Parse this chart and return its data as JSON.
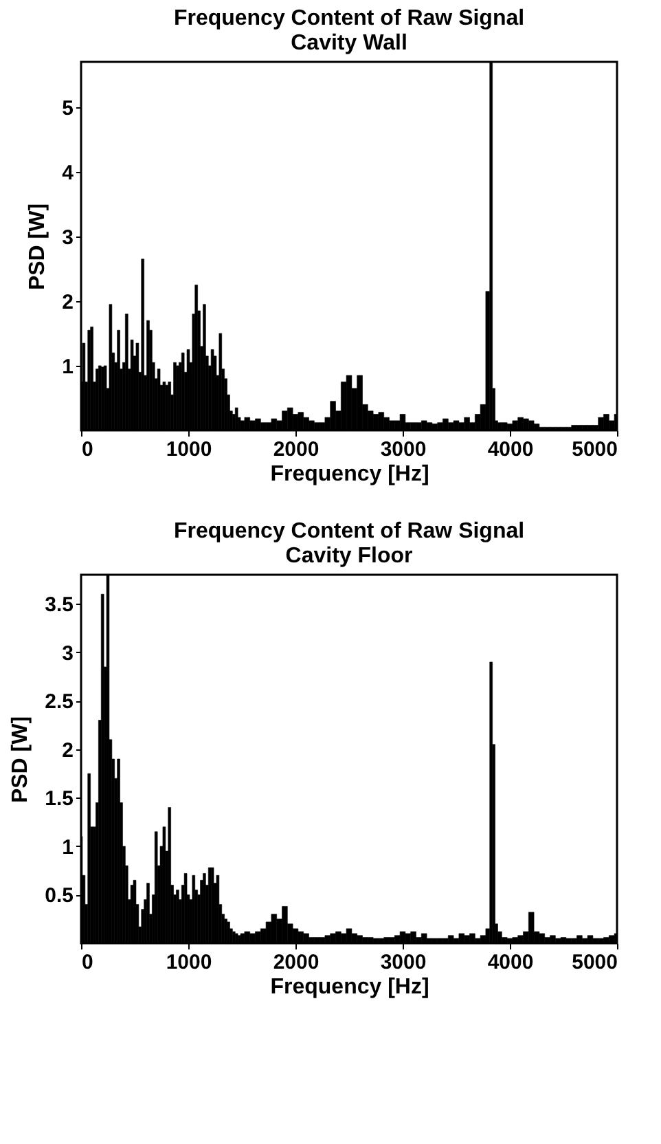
{
  "chart_data": [
    {
      "type": "bar",
      "title": "Frequency Content of Raw Signal",
      "subtitle": "Cavity Wall",
      "xlabel": "Frequency [Hz]",
      "ylabel": "PSD [W]",
      "xlim": [
        0,
        5000
      ],
      "xticks": [
        0,
        1000,
        2000,
        3000,
        4000,
        5000
      ],
      "ylim": [
        0,
        5.7
      ],
      "yticks": [
        1,
        2,
        3,
        4,
        5
      ],
      "grid": false,
      "series": [
        {
          "color": "#000000",
          "x": [
            0,
            25,
            50,
            75,
            100,
            125,
            150,
            175,
            200,
            225,
            250,
            275,
            300,
            325,
            350,
            375,
            400,
            425,
            450,
            475,
            500,
            525,
            550,
            575,
            600,
            625,
            650,
            675,
            700,
            725,
            750,
            775,
            800,
            825,
            850,
            875,
            900,
            925,
            950,
            975,
            1000,
            1025,
            1050,
            1075,
            1100,
            1125,
            1150,
            1175,
            1200,
            1225,
            1250,
            1275,
            1300,
            1325,
            1350,
            1375,
            1400,
            1425,
            1450,
            1475,
            1500,
            1550,
            1600,
            1650,
            1700,
            1750,
            1800,
            1850,
            1900,
            1950,
            2000,
            2050,
            2100,
            2150,
            2200,
            2250,
            2300,
            2350,
            2400,
            2450,
            2500,
            2550,
            2600,
            2650,
            2700,
            2750,
            2800,
            2850,
            2900,
            2950,
            3000,
            3050,
            3100,
            3150,
            3200,
            3250,
            3300,
            3350,
            3400,
            3450,
            3500,
            3550,
            3600,
            3650,
            3700,
            3750,
            3800,
            3825,
            3850,
            3875,
            3900,
            3950,
            4000,
            4050,
            4100,
            4150,
            4200,
            4250,
            4300,
            4350,
            4400,
            4450,
            4500,
            4550,
            4600,
            4650,
            4700,
            4750,
            4800,
            4850,
            4900,
            4950,
            5000
          ],
          "values": [
            0.75,
            1.35,
            0.75,
            1.55,
            1.6,
            0.75,
            0.95,
            1.0,
            0.98,
            1.0,
            0.65,
            1.95,
            1.2,
            1.05,
            1.55,
            0.95,
            1.05,
            1.8,
            0.95,
            1.4,
            1.15,
            1.35,
            0.9,
            2.65,
            0.85,
            1.7,
            1.55,
            1.05,
            0.8,
            0.95,
            0.7,
            0.75,
            0.7,
            0.75,
            0.55,
            1.05,
            1.0,
            1.05,
            1.2,
            0.9,
            1.25,
            1.05,
            1.8,
            2.25,
            1.85,
            1.3,
            1.95,
            1.15,
            1.0,
            1.25,
            1.15,
            0.85,
            1.5,
            0.95,
            0.8,
            0.55,
            0.3,
            0.25,
            0.35,
            0.2,
            0.15,
            0.2,
            0.15,
            0.18,
            0.12,
            0.12,
            0.18,
            0.15,
            0.3,
            0.35,
            0.25,
            0.28,
            0.2,
            0.15,
            0.12,
            0.12,
            0.2,
            0.45,
            0.3,
            0.75,
            0.85,
            0.65,
            0.85,
            0.4,
            0.3,
            0.25,
            0.28,
            0.2,
            0.15,
            0.15,
            0.25,
            0.12,
            0.12,
            0.12,
            0.15,
            0.12,
            0.1,
            0.12,
            0.18,
            0.12,
            0.15,
            0.12,
            0.2,
            0.12,
            0.25,
            0.4,
            2.15,
            5.7,
            0.65,
            0.15,
            0.12,
            0.12,
            0.1,
            0.15,
            0.2,
            0.18,
            0.15,
            0.1,
            0.05,
            0.05,
            0.05,
            0.05,
            0.05,
            0.05,
            0.08,
            0.08,
            0.08,
            0.08,
            0.08,
            0.2,
            0.25,
            0.15,
            0.25
          ]
        }
      ]
    },
    {
      "type": "bar",
      "title": "Frequency Content of Raw Signal",
      "subtitle": "Cavity Floor",
      "xlabel": "Frequency [Hz]",
      "ylabel": "PSD [W]",
      "xlim": [
        0,
        5000
      ],
      "xticks": [
        0,
        1000,
        2000,
        3000,
        4000,
        5000
      ],
      "ylim": [
        0,
        3.8
      ],
      "yticks": [
        0.5,
        1,
        1.5,
        2,
        2.5,
        3,
        3.5
      ],
      "grid": false,
      "series": [
        {
          "color": "#000000",
          "x": [
            0,
            25,
            50,
            75,
            100,
            125,
            150,
            175,
            200,
            225,
            250,
            275,
            300,
            325,
            350,
            375,
            400,
            425,
            450,
            475,
            500,
            525,
            550,
            575,
            600,
            625,
            650,
            675,
            700,
            725,
            750,
            775,
            800,
            825,
            850,
            875,
            900,
            925,
            950,
            975,
            1000,
            1025,
            1050,
            1075,
            1100,
            1125,
            1150,
            1175,
            1200,
            1225,
            1250,
            1275,
            1300,
            1325,
            1350,
            1375,
            1400,
            1425,
            1450,
            1475,
            1500,
            1550,
            1600,
            1650,
            1700,
            1750,
            1800,
            1850,
            1900,
            1950,
            2000,
            2050,
            2100,
            2150,
            2200,
            2250,
            2300,
            2350,
            2400,
            2450,
            2500,
            2550,
            2600,
            2650,
            2700,
            2750,
            2800,
            2850,
            2900,
            2950,
            3000,
            3050,
            3100,
            3150,
            3200,
            3250,
            3300,
            3350,
            3400,
            3450,
            3500,
            3550,
            3600,
            3650,
            3700,
            3750,
            3800,
            3825,
            3850,
            3875,
            3900,
            3950,
            4000,
            4050,
            4100,
            4150,
            4200,
            4250,
            4300,
            4350,
            4400,
            4450,
            4500,
            4550,
            4600,
            4650,
            4700,
            4750,
            4800,
            4850,
            4900,
            4950,
            5000
          ],
          "values": [
            1.1,
            0.7,
            0.4,
            1.75,
            1.2,
            1.2,
            1.45,
            2.3,
            3.6,
            2.85,
            3.8,
            2.1,
            1.9,
            1.7,
            1.9,
            1.45,
            1.0,
            0.8,
            0.45,
            0.6,
            0.65,
            0.4,
            0.17,
            0.35,
            0.45,
            0.62,
            0.3,
            0.5,
            1.15,
            0.8,
            1.0,
            1.2,
            0.95,
            1.4,
            0.6,
            0.5,
            0.55,
            0.45,
            0.6,
            0.72,
            0.5,
            0.45,
            0.7,
            0.55,
            0.5,
            0.65,
            0.72,
            0.6,
            0.78,
            0.78,
            0.62,
            0.7,
            0.4,
            0.3,
            0.25,
            0.22,
            0.15,
            0.12,
            0.1,
            0.08,
            0.1,
            0.12,
            0.1,
            0.12,
            0.15,
            0.22,
            0.3,
            0.25,
            0.38,
            0.2,
            0.15,
            0.12,
            0.1,
            0.06,
            0.06,
            0.06,
            0.08,
            0.1,
            0.12,
            0.1,
            0.15,
            0.1,
            0.08,
            0.06,
            0.06,
            0.05,
            0.05,
            0.06,
            0.06,
            0.08,
            0.12,
            0.1,
            0.12,
            0.06,
            0.1,
            0.05,
            0.05,
            0.05,
            0.05,
            0.08,
            0.05,
            0.1,
            0.08,
            0.1,
            0.05,
            0.08,
            0.15,
            2.9,
            2.05,
            0.2,
            0.12,
            0.06,
            0.05,
            0.06,
            0.08,
            0.12,
            0.32,
            0.12,
            0.1,
            0.06,
            0.08,
            0.05,
            0.06,
            0.05,
            0.05,
            0.08,
            0.05,
            0.08,
            0.05,
            0.05,
            0.06,
            0.08,
            0.1
          ]
        }
      ]
    }
  ]
}
